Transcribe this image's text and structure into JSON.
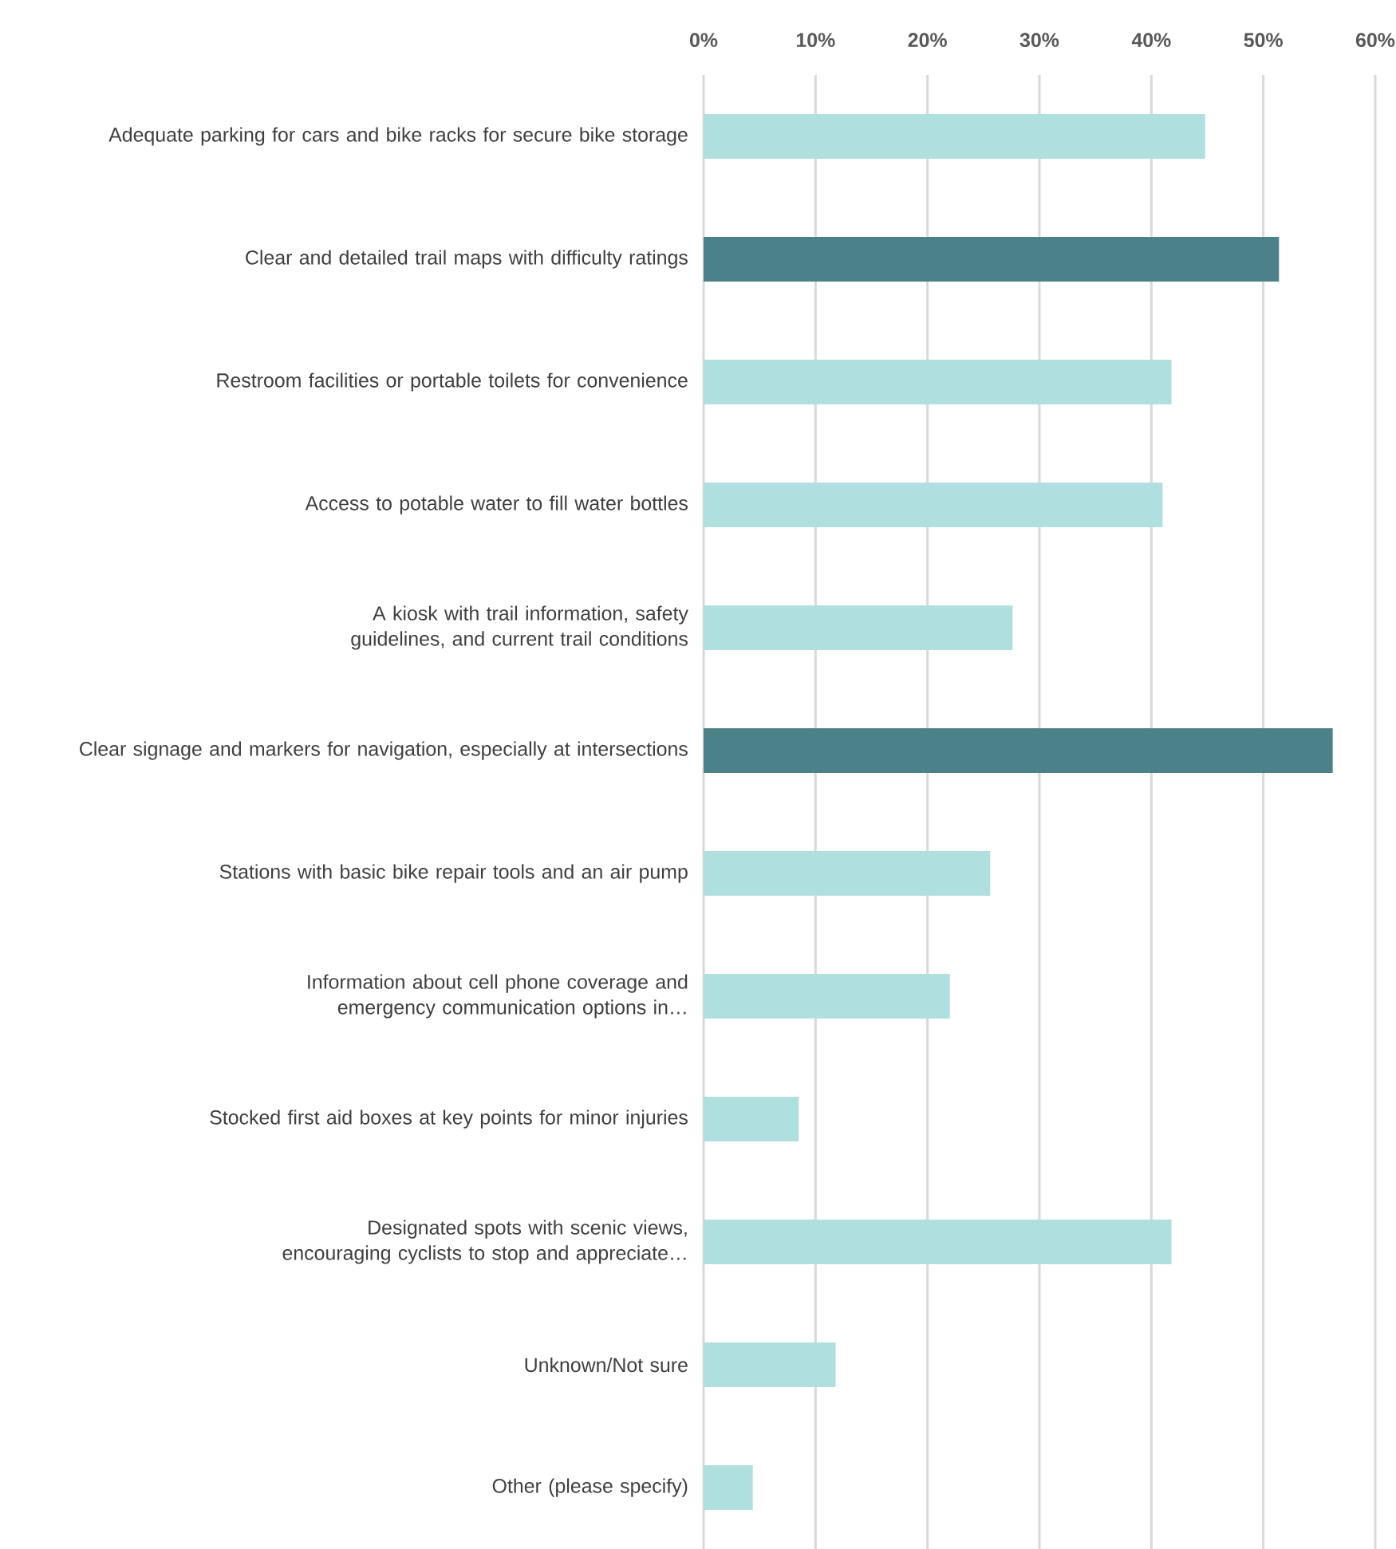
{
  "chart_data": {
    "type": "bar",
    "orientation": "horizontal",
    "grid": "x",
    "categories": [
      "Adequate parking for cars and bike racks for secure bike storage",
      "Clear and detailed trail maps with difficulty ratings",
      "Restroom facilities or portable toilets for convenience",
      "Access to potable water to fill water bottles",
      "A kiosk with trail information, safety guidelines, and current trail conditions",
      "Clear signage and markers for navigation, especially at intersections",
      "Stations with basic bike repair tools and an air pump",
      "Information about cell phone coverage and emergency communication options in…",
      "Stocked first aid boxes at key points for minor injuries",
      "Designated spots with scenic views, encouraging cyclists to stop and appreciate…",
      "Unknown/Not sure",
      "Other (please specify)"
    ],
    "values": [
      44.8,
      51.4,
      41.8,
      41.0,
      27.6,
      56.2,
      25.6,
      22.0,
      8.5,
      41.8,
      11.8,
      4.4
    ],
    "colors": [
      "#b0dfe0",
      "#4b828a",
      "#b0dfe0",
      "#b0dfe0",
      "#b0dfe0",
      "#4b828a",
      "#b0dfe0",
      "#b0dfe0",
      "#b0dfe0",
      "#b0dfe0",
      "#b0dfe0",
      "#b0dfe0"
    ],
    "xlim": [
      0,
      60
    ],
    "xticks": [
      {
        "value": 0,
        "label": "0%"
      },
      {
        "value": 10,
        "label": "10%"
      },
      {
        "value": 20,
        "label": "20%"
      },
      {
        "value": 30,
        "label": "30%"
      },
      {
        "value": 40,
        "label": "40%"
      },
      {
        "value": 50,
        "label": "50%"
      },
      {
        "value": 60,
        "label": "60%"
      }
    ]
  }
}
